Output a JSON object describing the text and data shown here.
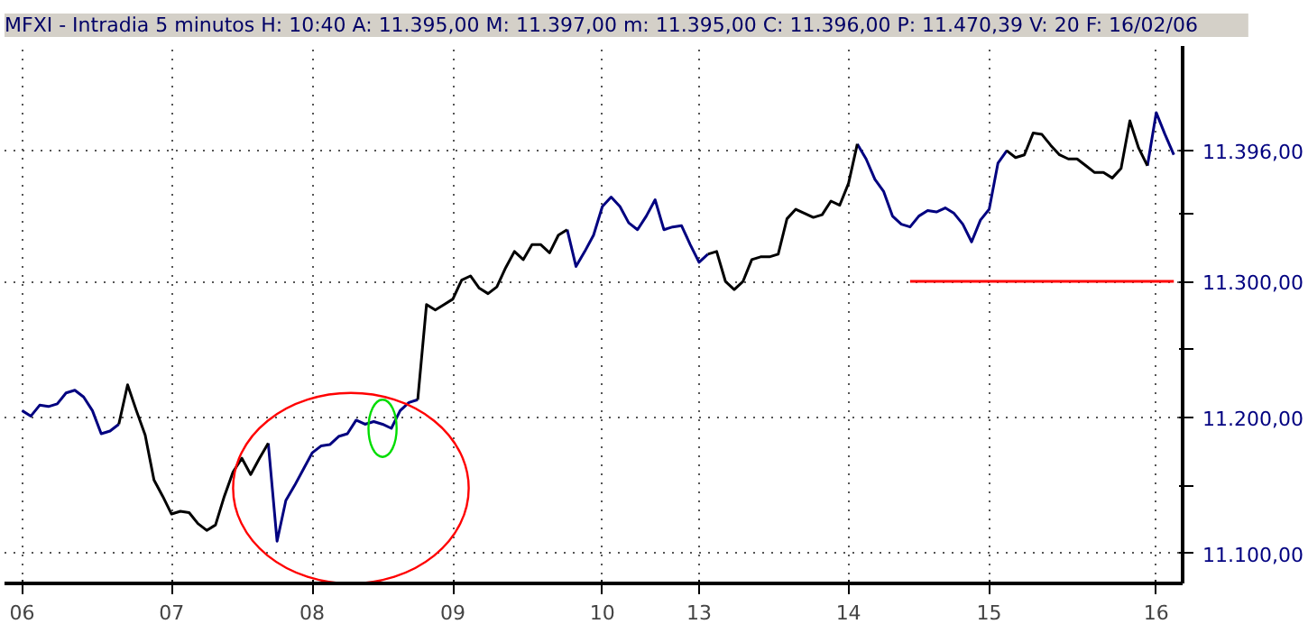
{
  "chart_data": {
    "type": "line",
    "title": "MFXI - Intradia 5 minutos  H: 10:40  A: 11.395,00  M: 11.397,00  m: 11.395,00  C: 11.396,00  P: 11.470,39  V: 20  F: 16/02/06",
    "categories": [
      null,
      "06",
      null,
      null,
      null,
      null,
      null,
      null,
      null,
      null,
      null,
      null,
      null,
      null,
      null,
      null,
      null,
      null,
      "07",
      null,
      null,
      null,
      null,
      null,
      null,
      null,
      null,
      null,
      null,
      null,
      null,
      null,
      null,
      null,
      "08",
      null,
      null,
      null,
      null,
      null,
      null,
      null,
      null,
      null,
      null,
      null,
      null,
      null,
      null,
      null,
      "09",
      null,
      null,
      null,
      null,
      null,
      null,
      null,
      null,
      null,
      null,
      null,
      null,
      null,
      null,
      null,
      null,
      "10",
      null,
      null,
      null,
      null,
      null,
      null,
      null,
      null,
      null,
      null,
      "13",
      null,
      null,
      null,
      null,
      null,
      null,
      null,
      null,
      null,
      null,
      null,
      null,
      null,
      null,
      null,
      null,
      "14",
      null,
      null,
      null,
      null,
      null,
      null,
      null,
      null,
      null,
      null,
      null,
      null,
      null,
      null,
      null,
      "15",
      null,
      null,
      null,
      null,
      null,
      null,
      null,
      null,
      null,
      null,
      null,
      null,
      null,
      null,
      null,
      null,
      null,
      null,
      "16",
      null,
      null
    ],
    "series": [
      {
        "color": "#000080",
        "values": [
          null,
          11205,
          11201,
          11209,
          11208,
          11210,
          11218,
          11220,
          11215,
          11205,
          11188,
          11190,
          11195,
          null,
          null,
          null,
          null,
          null,
          null,
          null,
          null,
          null,
          null,
          null,
          null,
          null,
          null,
          null,
          null,
          11181,
          11109,
          11139,
          11150,
          11162,
          11174,
          11179,
          11180,
          11186,
          11188,
          11198,
          11195,
          11197,
          11195,
          11192,
          11205,
          11211,
          11213,
          null,
          null,
          null,
          null,
          null,
          null,
          null,
          null,
          null,
          null,
          null,
          null,
          null,
          null,
          null,
          null,
          11338,
          11311,
          11322,
          11334,
          11355,
          11362,
          11355,
          11343,
          11338,
          11348,
          11360,
          11338,
          11340,
          11341,
          11327,
          11314,
          11320,
          null,
          null,
          null,
          null,
          null,
          null,
          null,
          null,
          null,
          null,
          null,
          null,
          null,
          null,
          null,
          null,
          11401,
          11390,
          11375,
          11366,
          11348,
          11342,
          11340,
          11348,
          11352,
          11351,
          11354,
          11350,
          11342,
          11329,
          11345,
          11353,
          11387,
          11396,
          null,
          null,
          null,
          null,
          null,
          null,
          null,
          null,
          null,
          null,
          null,
          null,
          null,
          null,
          null,
          11385,
          11424,
          11408,
          11393
        ]
      },
      {
        "color": "#000000",
        "values": [
          null,
          null,
          null,
          null,
          null,
          null,
          null,
          null,
          null,
          null,
          null,
          null,
          11195,
          11224,
          11205,
          11187,
          11154,
          11142,
          11129,
          11131,
          11130,
          11122,
          11117,
          11121,
          11142,
          11160,
          11170,
          11158,
          11170,
          11181,
          null,
          null,
          null,
          null,
          null,
          null,
          null,
          null,
          null,
          null,
          null,
          null,
          null,
          null,
          null,
          null,
          11213,
          11283,
          11279,
          11283,
          11287,
          11301,
          11304,
          11295,
          11291,
          11296,
          11310,
          11322,
          11316,
          11327,
          11327,
          11321,
          11334,
          11338,
          null,
          null,
          null,
          null,
          null,
          null,
          null,
          null,
          null,
          null,
          null,
          null,
          null,
          null,
          null,
          11320,
          11322,
          11300,
          11294,
          11300,
          11316,
          11318,
          11318,
          11320,
          11346,
          11353,
          11350,
          11347,
          11349,
          11359,
          11356,
          11372,
          11401,
          null,
          null,
          null,
          null,
          null,
          null,
          null,
          null,
          null,
          null,
          null,
          null,
          null,
          null,
          null,
          null,
          11396,
          11391,
          11393,
          11409,
          11408,
          11400,
          11393,
          11390,
          11390,
          11385,
          11380,
          11380,
          11376,
          11383,
          11418,
          11398,
          11385,
          null,
          null,
          null
        ]
      },
      {
        "color": "#ff0000",
        "values": [
          null,
          null,
          null,
          null,
          null,
          null,
          null,
          null,
          null,
          null,
          null,
          null,
          null,
          null,
          null,
          null,
          null,
          null,
          null,
          null,
          null,
          null,
          null,
          null,
          null,
          null,
          null,
          null,
          null,
          null,
          null,
          null,
          null,
          null,
          null,
          null,
          null,
          null,
          null,
          null,
          null,
          null,
          null,
          null,
          null,
          null,
          null,
          null,
          null,
          null,
          null,
          null,
          null,
          null,
          null,
          null,
          null,
          null,
          null,
          null,
          null,
          null,
          null,
          null,
          null,
          null,
          null,
          null,
          null,
          null,
          null,
          null,
          null,
          null,
          null,
          null,
          null,
          null,
          null,
          null,
          null,
          null,
          null,
          null,
          null,
          null,
          null,
          null,
          null,
          null,
          null,
          null,
          null,
          null,
          null,
          null,
          null,
          null,
          null,
          null,
          null,
          null,
          11300,
          11300,
          11300,
          11300,
          11300,
          11300,
          11300,
          11300,
          11300,
          11300,
          11300,
          11300,
          11300,
          11300,
          11300,
          11300,
          11300,
          11300,
          11300,
          11300,
          11300,
          11300,
          11300,
          11300,
          11300,
          11300,
          11300,
          11300,
          11300,
          11300,
          11300
        ]
      }
    ],
    "ylim": [
      11078,
      11473
    ],
    "yticks": [
      {
        "value": 11100,
        "label": "11.100,00"
      },
      {
        "value": 11150,
        "label": null
      },
      {
        "value": 11200,
        "label": "11.200,00"
      },
      {
        "value": 11250,
        "label": null
      },
      {
        "value": 11300,
        "label": "11.300,00"
      },
      {
        "value": 11350,
        "label": null
      },
      {
        "value": 11396,
        "label": "11.396,00"
      }
    ],
    "grid": true,
    "marker": "none",
    "line_style": "solid"
  }
}
